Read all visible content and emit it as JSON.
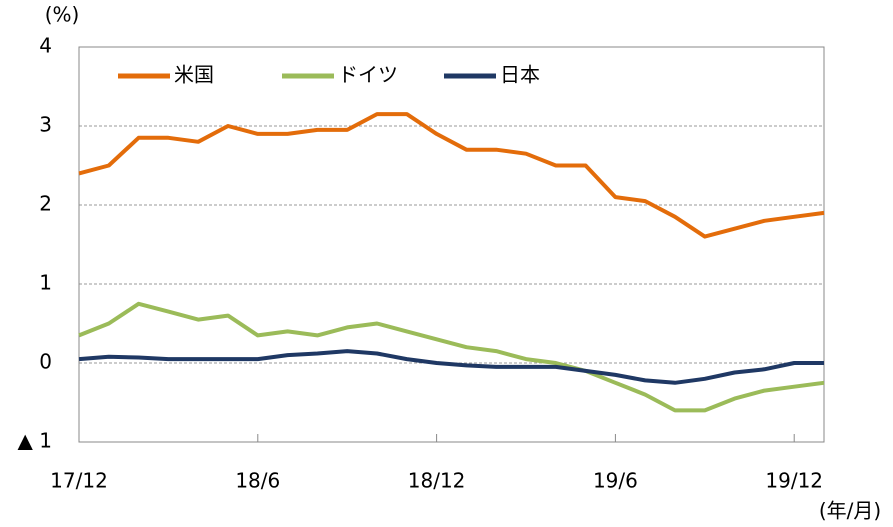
{
  "chart_data": {
    "type": "line",
    "y_unit": "(%)",
    "x_unit": "(年/月)",
    "categories": [
      "17/12",
      null,
      null,
      null,
      null,
      null,
      "18/6",
      null,
      null,
      null,
      null,
      null,
      "18/12",
      null,
      null,
      null,
      null,
      null,
      "19/6",
      null,
      null,
      null,
      null,
      null,
      "19/12",
      null
    ],
    "series": [
      {
        "name": "米国",
        "color": "#e36c0a",
        "values": [
          2.4,
          2.5,
          2.85,
          2.85,
          2.8,
          3.0,
          2.9,
          2.9,
          2.95,
          2.95,
          3.15,
          3.15,
          2.9,
          2.7,
          2.7,
          2.65,
          2.5,
          2.5,
          2.1,
          2.05,
          1.85,
          1.6,
          1.7,
          1.8,
          1.85,
          1.9
        ]
      },
      {
        "name": "ドイツ",
        "color": "#9bbb59",
        "values": [
          0.35,
          0.5,
          0.75,
          0.65,
          0.55,
          0.6,
          0.35,
          0.4,
          0.35,
          0.45,
          0.5,
          0.4,
          0.3,
          0.2,
          0.15,
          0.05,
          0.0,
          -0.1,
          -0.25,
          -0.4,
          -0.6,
          -0.6,
          -0.45,
          -0.35,
          -0.3,
          -0.25
        ]
      },
      {
        "name": "日本",
        "color": "#1f3864",
        "values": [
          0.05,
          0.08,
          0.07,
          0.05,
          0.05,
          0.05,
          0.05,
          0.1,
          0.12,
          0.15,
          0.12,
          0.05,
          0.0,
          -0.03,
          -0.05,
          -0.05,
          -0.05,
          -0.1,
          -0.15,
          -0.22,
          -0.25,
          -0.2,
          -0.12,
          -0.08,
          0.0,
          0.0
        ]
      }
    ],
    "ylim": [
      -1,
      4
    ],
    "yticks": [
      {
        "value": -1,
        "label": "▲ 1"
      },
      0,
      1,
      2,
      3,
      4
    ],
    "grid": true,
    "legend": "top-left"
  }
}
